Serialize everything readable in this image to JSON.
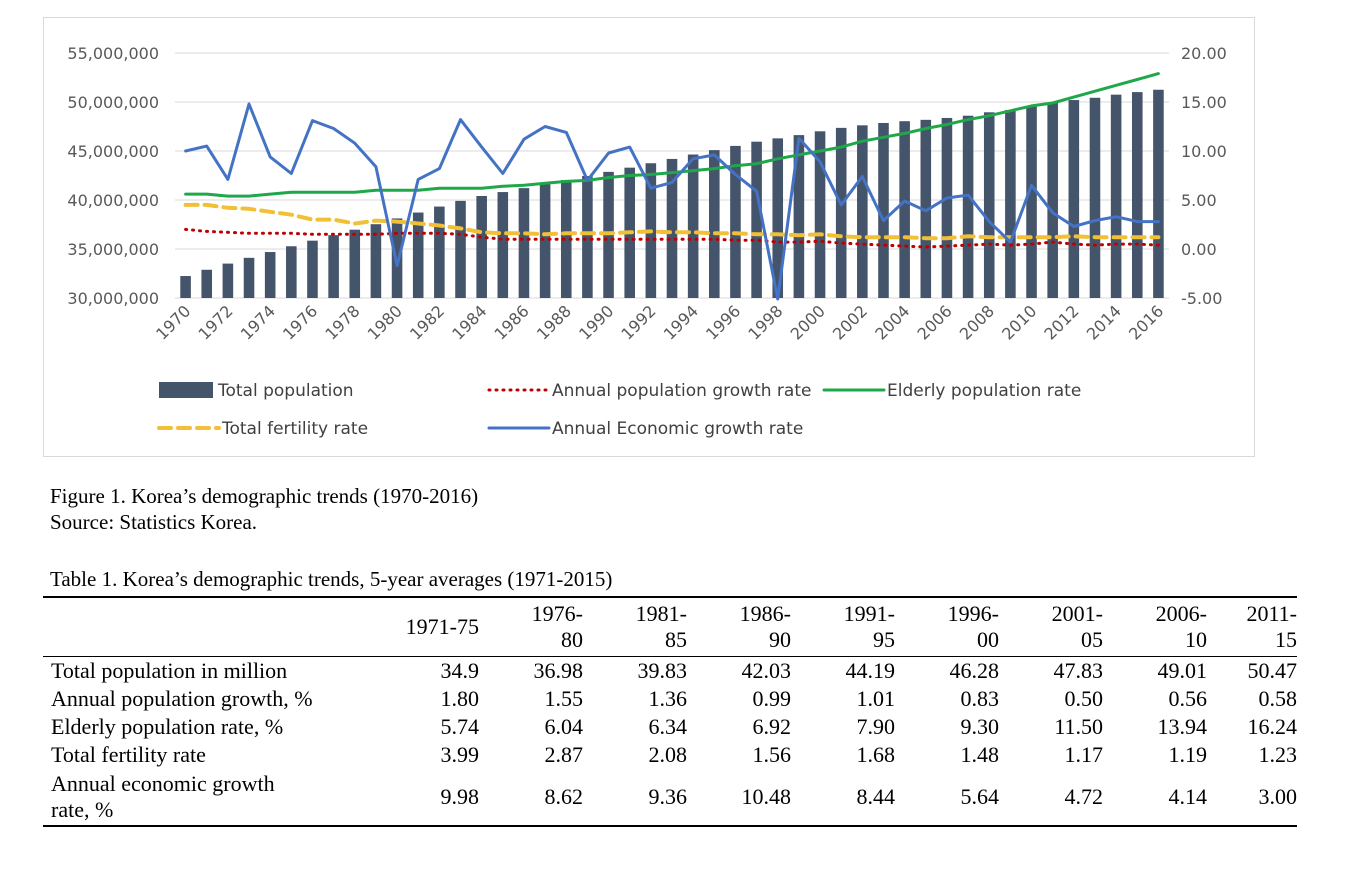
{
  "chart_data": {
    "type": "bar",
    "categories": [
      1970,
      1971,
      1972,
      1973,
      1974,
      1975,
      1976,
      1977,
      1978,
      1979,
      1980,
      1981,
      1982,
      1983,
      1984,
      1985,
      1986,
      1987,
      1988,
      1989,
      1990,
      1991,
      1992,
      1993,
      1994,
      1995,
      1996,
      1997,
      1998,
      1999,
      2000,
      2001,
      2002,
      2003,
      2004,
      2005,
      2006,
      2007,
      2008,
      2009,
      2010,
      2011,
      2012,
      2013,
      2014,
      2015,
      2016
    ],
    "tick_labels": [
      "1970",
      "1972",
      "1974",
      "1976",
      "1978",
      "1980",
      "1982",
      "1984",
      "1986",
      "1988",
      "1990",
      "1992",
      "1994",
      "1996",
      "1998",
      "2000",
      "2002",
      "2004",
      "2006",
      "2008",
      "2010",
      "2012",
      "2014",
      "2016"
    ],
    "left_axis": {
      "ylim": [
        30000000,
        55000000
      ],
      "ticks": [
        "30,000,000",
        "35,000,000",
        "40,000,000",
        "45,000,000",
        "50,000,000",
        "55,000,000"
      ]
    },
    "right_axis": {
      "ylim": [
        -5,
        20
      ],
      "ticks": [
        "-5.00",
        "0.00",
        "5.00",
        "10.00",
        "15.00",
        "20.00"
      ]
    },
    "series": [
      {
        "name": "Total population",
        "type": "bar",
        "axis": "left",
        "color": "#44546a",
        "values": [
          32240000,
          32880000,
          33510000,
          34100000,
          34690000,
          35280000,
          35850000,
          36410000,
          36970000,
          37530000,
          38120000,
          38720000,
          39330000,
          39910000,
          40410000,
          40810000,
          41210000,
          41620000,
          42030000,
          42450000,
          42870000,
          43300000,
          43750000,
          44190000,
          44640000,
          45090000,
          45520000,
          45950000,
          46290000,
          46620000,
          47010000,
          47360000,
          47620000,
          47860000,
          48040000,
          48180000,
          48370000,
          48600000,
          48950000,
          49180000,
          49550000,
          49940000,
          50200000,
          50430000,
          50750000,
          51010000,
          51250000
        ]
      },
      {
        "name": "Annual population growth rate",
        "type": "line",
        "axis": "right",
        "style": "dotted",
        "color": "#c00000",
        "values": [
          2.0,
          1.8,
          1.7,
          1.6,
          1.6,
          1.6,
          1.5,
          1.5,
          1.5,
          1.5,
          1.6,
          1.6,
          1.6,
          1.5,
          1.2,
          1.0,
          1.0,
          1.0,
          1.0,
          1.0,
          1.0,
          1.0,
          1.0,
          1.0,
          1.0,
          1.0,
          0.9,
          0.9,
          0.7,
          0.7,
          0.8,
          0.6,
          0.5,
          0.4,
          0.3,
          0.2,
          0.3,
          0.4,
          0.5,
          0.4,
          0.5,
          0.7,
          0.5,
          0.4,
          0.5,
          0.5,
          0.4
        ]
      },
      {
        "name": "Elderly population rate",
        "type": "line",
        "axis": "right",
        "style": "solid",
        "color": "#1ea84a",
        "values": [
          5.6,
          5.6,
          5.4,
          5.4,
          5.6,
          5.8,
          5.8,
          5.8,
          5.8,
          6.0,
          6.0,
          6.0,
          6.2,
          6.2,
          6.2,
          6.4,
          6.5,
          6.7,
          6.9,
          7.0,
          7.3,
          7.5,
          7.6,
          7.8,
          8.0,
          8.2,
          8.5,
          8.7,
          9.2,
          9.6,
          10.0,
          10.4,
          11.0,
          11.4,
          11.8,
          12.3,
          12.7,
          13.2,
          13.6,
          14.1,
          14.6,
          14.9,
          15.5,
          16.1,
          16.7,
          17.3,
          17.9
        ]
      },
      {
        "name": "Total fertility rate",
        "type": "line",
        "axis": "right",
        "style": "dashed",
        "color": "#f2c037",
        "values": [
          4.5,
          4.5,
          4.2,
          4.1,
          3.8,
          3.5,
          3.0,
          3.0,
          2.6,
          2.9,
          2.8,
          2.6,
          2.4,
          2.1,
          1.7,
          1.6,
          1.6,
          1.5,
          1.6,
          1.6,
          1.6,
          1.7,
          1.8,
          1.7,
          1.7,
          1.6,
          1.6,
          1.5,
          1.5,
          1.4,
          1.5,
          1.3,
          1.2,
          1.2,
          1.2,
          1.1,
          1.1,
          1.3,
          1.2,
          1.2,
          1.2,
          1.2,
          1.3,
          1.2,
          1.2,
          1.2,
          1.2
        ]
      },
      {
        "name": "Annual Economic growth rate",
        "type": "line",
        "axis": "right",
        "style": "solid",
        "color": "#4472c4",
        "values": [
          10.0,
          10.5,
          7.1,
          14.8,
          9.4,
          7.7,
          13.1,
          12.3,
          10.8,
          8.4,
          -1.7,
          7.1,
          8.2,
          13.2,
          10.4,
          7.7,
          11.2,
          12.5,
          11.9,
          7.0,
          9.8,
          10.4,
          6.2,
          6.8,
          9.2,
          9.6,
          7.6,
          5.9,
          -5.1,
          11.3,
          8.9,
          4.5,
          7.4,
          2.9,
          4.9,
          3.9,
          5.2,
          5.5,
          2.8,
          0.7,
          6.5,
          3.7,
          2.3,
          2.9,
          3.3,
          2.8,
          2.8
        ]
      }
    ],
    "legend": [
      "Total population",
      "Annual population growth rate",
      "Elderly population rate",
      "Total fertility rate",
      "Annual Economic growth rate"
    ],
    "legend_position": "bottom"
  },
  "figure_caption": {
    "line1": "Figure 1. Korea’s demographic trends (1970-2016)",
    "line2": "Source: Statistics Korea."
  },
  "table": {
    "title": "Table 1. Korea’s demographic trends, 5-year averages (1971-2015)",
    "headers": [
      {
        "l1": "1971-75",
        "l2": ""
      },
      {
        "l1": "1976-",
        "l2": "80"
      },
      {
        "l1": "1981-",
        "l2": "85"
      },
      {
        "l1": "1986-",
        "l2": "90"
      },
      {
        "l1": "1991-",
        "l2": "95"
      },
      {
        "l1": "1996-",
        "l2": "00"
      },
      {
        "l1": "2001-",
        "l2": "05"
      },
      {
        "l1": "2006-",
        "l2": "10"
      },
      {
        "l1": "2011-",
        "l2": "15"
      }
    ],
    "rows": [
      {
        "label": "Total population in million",
        "values": [
          "34.9",
          "36.98",
          "39.83",
          "42.03",
          "44.19",
          "46.28",
          "47.83",
          "49.01",
          "50.47"
        ]
      },
      {
        "label": "Annual population growth, %",
        "values": [
          "1.80",
          "1.55",
          "1.36",
          "0.99",
          "1.01",
          "0.83",
          "0.50",
          "0.56",
          "0.58"
        ]
      },
      {
        "label": "Elderly population rate, %",
        "values": [
          "5.74",
          "6.04",
          "6.34",
          "6.92",
          "7.90",
          "9.30",
          "11.50",
          "13.94",
          "16.24"
        ]
      },
      {
        "label": "Total fertility rate",
        "values": [
          "3.99",
          "2.87",
          "2.08",
          "1.56",
          "1.68",
          "1.48",
          "1.17",
          "1.19",
          "1.23"
        ]
      },
      {
        "label": "Annual economic growth",
        "label2": "rate, %",
        "values": [
          "9.98",
          "8.62",
          "9.36",
          "10.48",
          "8.44",
          "5.64",
          "4.72",
          "4.14",
          "3.00"
        ]
      }
    ]
  }
}
